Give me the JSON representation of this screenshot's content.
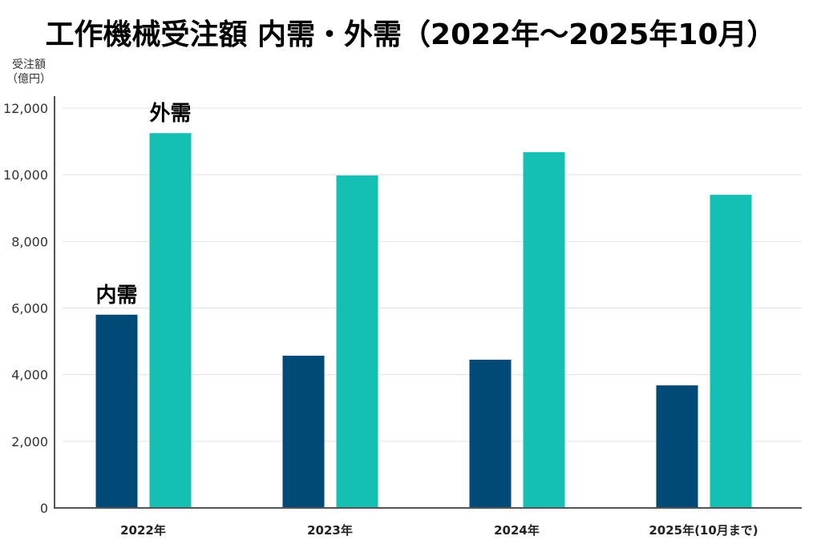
{
  "chart_data": {
    "type": "bar",
    "title": "工作機械受注額 内需・外需（2022年～2025年10月）",
    "ylabel_line1": "受注額",
    "ylabel_line2": "（億円）",
    "categories": [
      "2022年",
      "2023年",
      "2024年",
      "2025年(10月まで)"
    ],
    "series": [
      {
        "name": "内需",
        "color": "#004a78",
        "values": [
          5800,
          4570,
          4450,
          3680
        ]
      },
      {
        "name": "外需",
        "color": "#14bfb4",
        "values": [
          11250,
          9980,
          10680,
          9400
        ]
      }
    ],
    "ylim": [
      0,
      12000
    ],
    "yticks": [
      0,
      2000,
      4000,
      6000,
      8000,
      10000,
      12000
    ],
    "ytick_labels": [
      "0",
      "2,000",
      "4,000",
      "6,000",
      "8,000",
      "10,000",
      "12,000"
    ],
    "grid": true,
    "legend": "series names labelled above the first category's bars"
  }
}
